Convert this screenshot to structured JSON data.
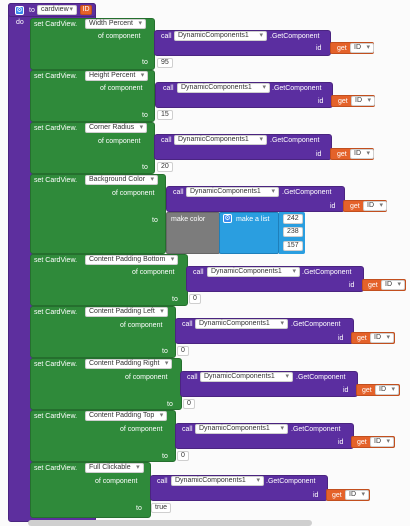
{
  "procedure": {
    "to": "to",
    "name": "cardview",
    "param": "ID",
    "do": "do"
  },
  "common": {
    "set": "set CardView.",
    "of_component": "of component",
    "to": "to",
    "call": "call",
    "get_component": ".GetComponent",
    "id": "id",
    "get": "get",
    "id_var": "ID",
    "component": "DynamicComponents1"
  },
  "blocks": [
    {
      "property": "Width Percent",
      "value": "95"
    },
    {
      "property": "Height Percent",
      "value": "15"
    },
    {
      "property": "Corner Radius",
      "value": "20"
    },
    {
      "property": "Background Color",
      "value": ""
    },
    {
      "property": "Content Padding Bottom",
      "value": "0"
    },
    {
      "property": "Content Padding Left",
      "value": "0"
    },
    {
      "property": "Content Padding Right",
      "value": "0"
    },
    {
      "property": "Content Padding Top",
      "value": "0"
    },
    {
      "property": "Full Clickable",
      "value": "true"
    }
  ],
  "color": {
    "make_color": "make color",
    "make_list": "make a list",
    "r": "242",
    "g": "238",
    "b": "157"
  },
  "colors": {
    "procedure": "#5d2f9e",
    "setter": "#2f8a3a",
    "variable": "#e4622a",
    "list": "#2a9ee0",
    "color_block": "#7c7c7c"
  }
}
